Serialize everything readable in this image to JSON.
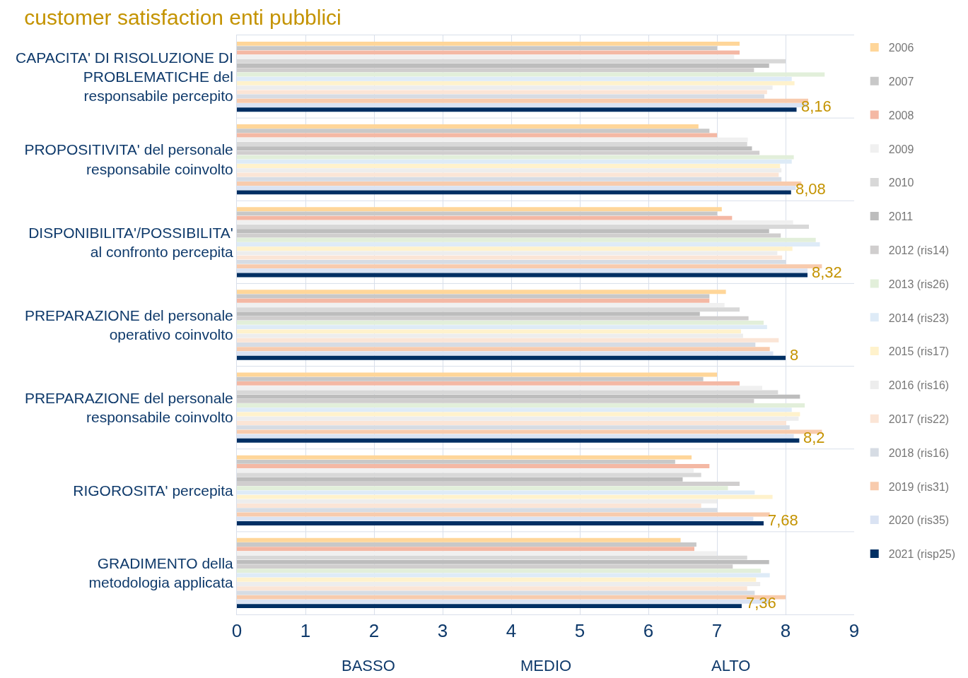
{
  "chart_data": {
    "type": "bar",
    "orientation": "horizontal",
    "title": "customer satisfaction enti pubblici",
    "categories": [
      "CAPACITA' DI RISOLUZIONE DI\nPROBLEMATICHE del\nresponsabile percepito",
      "PROPOSITIVITA' del personale\nresponsabile coinvolto",
      "DISPONIBILITA'/POSSIBILITA'\nal confronto percepita",
      "PREPARAZIONE del personale\noperativo coinvolto",
      "PREPARAZIONE del personale\nresponsabile coinvolto",
      "RIGOROSITA' percepita",
      "GRADIMENTO della\nmetodologia applicata"
    ],
    "series": [
      {
        "name": "2006",
        "color": "#ffd699",
        "values": [
          7.33,
          6.73,
          7.07,
          7.13,
          7.0,
          6.63,
          6.47
        ]
      },
      {
        "name": "2007",
        "color": "#c8c8c8",
        "values": [
          7.0,
          6.89,
          7.0,
          6.89,
          6.8,
          6.39,
          6.7
        ]
      },
      {
        "name": "2008",
        "color": "#f4b8a4",
        "values": [
          7.33,
          7.0,
          7.22,
          6.89,
          7.33,
          6.89,
          6.67
        ]
      },
      {
        "name": "2009",
        "color": "#f0f0f0",
        "values": [
          7.25,
          7.45,
          8.11,
          7.11,
          7.66,
          6.66,
          7.0
        ]
      },
      {
        "name": "2010",
        "color": "#d8d8d8",
        "values": [
          8.0,
          7.44,
          8.34,
          7.33,
          7.89,
          6.77,
          7.44
        ]
      },
      {
        "name": "2011",
        "color": "#bdbdbd",
        "values": [
          7.76,
          7.51,
          7.76,
          6.75,
          8.21,
          6.5,
          7.76
        ]
      },
      {
        "name": "2012 (ris14)",
        "color": "#d0cece",
        "values": [
          7.54,
          7.62,
          7.93,
          7.46,
          7.54,
          7.33,
          7.23
        ]
      },
      {
        "name": "2013 (ris26)",
        "color": "#e2efda",
        "values": [
          8.57,
          8.12,
          8.44,
          7.68,
          8.28,
          7.16,
          7.64
        ]
      },
      {
        "name": "2014 (ris23)",
        "color": "#deebf7",
        "values": [
          8.09,
          8.09,
          8.5,
          7.73,
          8.09,
          7.55,
          7.77
        ]
      },
      {
        "name": "2015 (ris17)",
        "color": "#fff2cc",
        "values": [
          8.13,
          7.92,
          8.1,
          7.35,
          8.21,
          7.81,
          7.57
        ]
      },
      {
        "name": "2016 (ris16)",
        "color": "#ededed",
        "values": [
          7.81,
          7.94,
          7.88,
          7.38,
          8.19,
          7.0,
          7.63
        ]
      },
      {
        "name": "2017 (ris22)",
        "color": "#fbe5d6",
        "values": [
          7.73,
          7.9,
          7.95,
          7.9,
          8.01,
          6.77,
          7.44
        ]
      },
      {
        "name": "2018 (ris16)",
        "color": "#d6dce4",
        "values": [
          7.69,
          7.94,
          8.0,
          7.56,
          8.06,
          7.0,
          7.55
        ]
      },
      {
        "name": "2019 (ris31)",
        "color": "#f8cbad",
        "values": [
          8.33,
          8.23,
          8.53,
          7.77,
          8.53,
          7.77,
          8.0
        ]
      },
      {
        "name": "2020 (ris35)",
        "color": "#dae3f3",
        "values": [
          8.32,
          8.15,
          8.32,
          7.82,
          8.12,
          7.53,
          7.76
        ]
      },
      {
        "name": "2021 (risp25)",
        "color": "#002f63",
        "values": [
          8.16,
          8.08,
          8.32,
          8.0,
          8.2,
          7.68,
          7.36
        ],
        "value_labels": [
          "8,16",
          "8,08",
          "8,32",
          "8",
          "8,2",
          "7,68",
          "7,36"
        ]
      }
    ],
    "xlim": [
      0,
      9
    ],
    "xticks": [
      0,
      1,
      2,
      3,
      4,
      5,
      6,
      7,
      8,
      9
    ],
    "grid": true,
    "legend": "right",
    "annotations": [
      "BASSO",
      "MEDIO",
      "ALTO"
    ]
  }
}
